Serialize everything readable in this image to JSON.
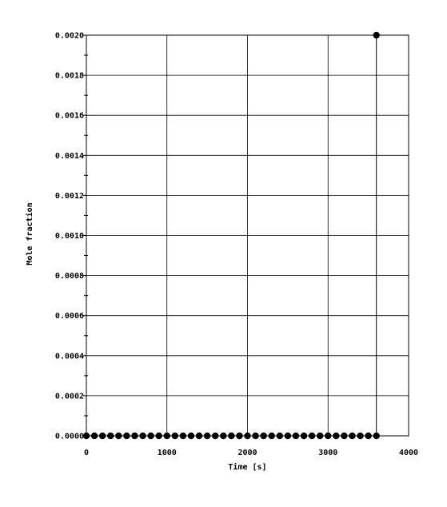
{
  "chart_data": {
    "type": "scatter",
    "title": "",
    "xlabel": "Time [s]",
    "ylabel": "Mole fraction",
    "xlim": [
      0,
      4000
    ],
    "ylim": [
      0,
      0.002
    ],
    "grid": true,
    "x_ticks": [
      "0",
      "1000",
      "2000",
      "3000",
      "4000"
    ],
    "y_ticks": [
      "0.0000",
      "0.0002",
      "0.0004",
      "0.0006",
      "0.0008",
      "0.0010",
      "0.0012",
      "0.0014",
      "0.0016",
      "0.0018",
      "0.0020"
    ],
    "series": [
      {
        "x": [
          0,
          100,
          200,
          300,
          400,
          500,
          600,
          700,
          800,
          900,
          1000,
          1100,
          1200,
          1300,
          1400,
          1500,
          1600,
          1700,
          1800,
          1900,
          2000,
          2100,
          2200,
          2300,
          2400,
          2500,
          2600,
          2700,
          2800,
          2900,
          3000,
          3100,
          3200,
          3300,
          3400,
          3500,
          3600,
          3600
        ],
        "y": [
          0,
          0,
          0,
          0,
          0,
          0,
          0,
          0,
          0,
          0,
          0,
          0,
          0,
          0,
          0,
          0,
          0,
          0,
          0,
          0,
          0,
          0,
          0,
          0,
          0,
          0,
          0,
          0,
          0,
          0,
          0,
          0,
          0,
          0,
          0,
          0,
          0,
          0.002
        ]
      }
    ]
  }
}
